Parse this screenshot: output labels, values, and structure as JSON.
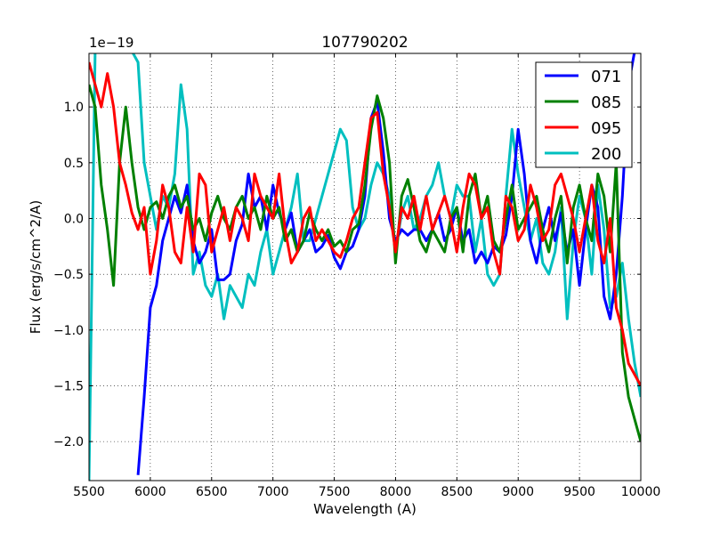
{
  "chart_data": {
    "type": "line",
    "title": "107790202",
    "xlabel": "Wavelength (A)",
    "ylabel": "Flux (erg/s/cm^2/A)",
    "offset_text": "1e−19",
    "xlim": [
      5500,
      10000
    ],
    "ylim": [
      -2.35,
      1.48
    ],
    "xticks": [
      5500,
      6000,
      6500,
      7000,
      7500,
      8000,
      8500,
      9000,
      9500,
      10000
    ],
    "xtick_labels": [
      "5500",
      "6000",
      "6500",
      "7000",
      "7500",
      "8000",
      "8500",
      "9000",
      "9500",
      "10000"
    ],
    "yticks": [
      -2.0,
      -1.5,
      -1.0,
      -0.5,
      0.0,
      0.5,
      1.0
    ],
    "ytick_labels": [
      "−2.0",
      "−1.5",
      "−1.0",
      "−0.5",
      "0.0",
      "0.5",
      "1.0"
    ],
    "grid": true,
    "legend_position": "top-right",
    "series": [
      {
        "name": "071",
        "color": "#0000ff",
        "x": [
          5900,
          5950,
          6000,
          6050,
          6100,
          6150,
          6200,
          6250,
          6300,
          6350,
          6400,
          6450,
          6500,
          6550,
          6600,
          6650,
          6700,
          6750,
          6800,
          6850,
          6900,
          6950,
          7000,
          7050,
          7100,
          7150,
          7200,
          7250,
          7300,
          7350,
          7400,
          7450,
          7500,
          7550,
          7600,
          7650,
          7700,
          7750,
          7800,
          7850,
          7900,
          7950,
          8000,
          8050,
          8100,
          8150,
          8200,
          8250,
          8300,
          8350,
          8400,
          8450,
          8500,
          8550,
          8600,
          8650,
          8700,
          8750,
          8800,
          8850,
          8900,
          8950,
          9000,
          9050,
          9100,
          9150,
          9200,
          9250,
          9300,
          9350,
          9400,
          9450,
          9500,
          9550,
          9600,
          9650,
          9700,
          9750,
          9800,
          9850,
          9900,
          9950,
          10000
        ],
        "values": [
          -2.3,
          -1.6,
          -0.8,
          -0.6,
          -0.2,
          0.0,
          0.2,
          0.05,
          0.3,
          -0.2,
          -0.4,
          -0.3,
          -0.1,
          -0.55,
          -0.55,
          -0.5,
          -0.2,
          -0.05,
          0.4,
          0.1,
          0.2,
          -0.1,
          0.3,
          0.05,
          -0.1,
          0.05,
          -0.3,
          -0.2,
          -0.1,
          -0.3,
          -0.25,
          -0.15,
          -0.35,
          -0.45,
          -0.3,
          -0.25,
          -0.1,
          0.2,
          0.9,
          1.05,
          0.6,
          0.0,
          -0.2,
          -0.1,
          -0.15,
          -0.1,
          -0.1,
          -0.2,
          -0.1,
          0.05,
          -0.2,
          -0.1,
          0.1,
          -0.2,
          -0.1,
          -0.4,
          -0.3,
          -0.4,
          -0.25,
          -0.3,
          -0.15,
          0.2,
          0.8,
          0.4,
          -0.2,
          -0.4,
          -0.1,
          0.1,
          -0.2,
          0.05,
          -0.3,
          -0.1,
          -0.6,
          -0.1,
          0.3,
          0.1,
          -0.7,
          -0.9,
          -0.5,
          0.2,
          1.2,
          1.5,
          1.5
        ]
      },
      {
        "name": "085",
        "color": "#008000",
        "x": [
          5500,
          5550,
          5600,
          5650,
          5700,
          5750,
          5800,
          5850,
          5900,
          5950,
          6000,
          6050,
          6100,
          6150,
          6200,
          6250,
          6300,
          6350,
          6400,
          6450,
          6500,
          6550,
          6600,
          6650,
          6700,
          6750,
          6800,
          6850,
          6900,
          6950,
          7000,
          7050,
          7100,
          7150,
          7200,
          7250,
          7300,
          7350,
          7400,
          7450,
          7500,
          7550,
          7600,
          7650,
          7700,
          7750,
          7800,
          7850,
          7900,
          7950,
          8000,
          8050,
          8100,
          8150,
          8200,
          8250,
          8300,
          8350,
          8400,
          8450,
          8500,
          8550,
          8600,
          8650,
          8700,
          8750,
          8800,
          8850,
          8900,
          8950,
          9000,
          9050,
          9100,
          9150,
          9200,
          9250,
          9300,
          9350,
          9400,
          9450,
          9500,
          9550,
          9600,
          9650,
          9700,
          9750,
          9800,
          9850,
          9900,
          9950,
          10000
        ],
        "values": [
          1.2,
          1.0,
          0.3,
          -0.1,
          -0.6,
          0.5,
          1.0,
          0.5,
          0.1,
          -0.1,
          0.1,
          0.15,
          0.0,
          0.2,
          0.3,
          0.1,
          0.2,
          -0.1,
          0.0,
          -0.2,
          0.05,
          0.2,
          0.0,
          -0.1,
          0.1,
          0.2,
          0.0,
          0.1,
          -0.1,
          0.2,
          0.0,
          0.1,
          -0.2,
          -0.1,
          -0.3,
          -0.2,
          0.05,
          -0.1,
          -0.2,
          -0.1,
          -0.25,
          -0.2,
          -0.3,
          -0.1,
          -0.05,
          0.3,
          0.8,
          1.1,
          0.9,
          0.5,
          -0.4,
          0.2,
          0.35,
          0.1,
          -0.2,
          -0.3,
          -0.1,
          -0.2,
          -0.3,
          0.0,
          0.1,
          -0.3,
          0.2,
          0.4,
          0.0,
          0.2,
          -0.2,
          -0.3,
          0.0,
          0.3,
          -0.1,
          0.0,
          0.1,
          0.2,
          -0.1,
          -0.3,
          0.0,
          0.2,
          -0.4,
          0.1,
          0.3,
          0.0,
          -0.2,
          0.4,
          0.2,
          -0.3,
          0.5,
          -1.2,
          -1.6,
          -1.8,
          -2.0
        ]
      },
      {
        "name": "095",
        "color": "#ff0000",
        "x": [
          5500,
          5550,
          5600,
          5650,
          5700,
          5750,
          5800,
          5850,
          5900,
          5950,
          6000,
          6050,
          6100,
          6150,
          6200,
          6250,
          6300,
          6350,
          6400,
          6450,
          6500,
          6550,
          6600,
          6650,
          6700,
          6750,
          6800,
          6850,
          6900,
          6950,
          7000,
          7050,
          7100,
          7150,
          7200,
          7250,
          7300,
          7350,
          7400,
          7450,
          7500,
          7550,
          7600,
          7650,
          7700,
          7750,
          7800,
          7850,
          7900,
          7950,
          8000,
          8050,
          8100,
          8150,
          8200,
          8250,
          8300,
          8350,
          8400,
          8450,
          8500,
          8550,
          8600,
          8650,
          8700,
          8750,
          8800,
          8850,
          8900,
          8950,
          9000,
          9050,
          9100,
          9150,
          9200,
          9250,
          9300,
          9350,
          9400,
          9450,
          9500,
          9550,
          9600,
          9650,
          9700,
          9750,
          9800,
          9850,
          9900,
          9950,
          10000
        ],
        "values": [
          1.4,
          1.2,
          1.0,
          1.3,
          1.0,
          0.5,
          0.3,
          0.05,
          -0.1,
          0.1,
          -0.5,
          -0.2,
          0.3,
          0.1,
          -0.3,
          -0.4,
          0.1,
          -0.3,
          0.4,
          0.3,
          -0.3,
          -0.1,
          0.1,
          -0.2,
          0.1,
          0.0,
          -0.2,
          0.4,
          0.2,
          0.1,
          0.0,
          0.4,
          -0.1,
          -0.4,
          -0.3,
          0.0,
          0.1,
          -0.2,
          -0.1,
          -0.2,
          -0.3,
          -0.35,
          -0.2,
          0.0,
          0.1,
          0.5,
          0.9,
          0.95,
          0.4,
          0.1,
          -0.3,
          0.1,
          0.0,
          0.2,
          -0.1,
          0.2,
          -0.1,
          0.05,
          0.2,
          0.0,
          -0.3,
          0.1,
          0.4,
          0.3,
          0.0,
          0.1,
          -0.3,
          -0.5,
          0.2,
          0.1,
          -0.2,
          -0.1,
          0.3,
          0.1,
          -0.2,
          -0.1,
          0.3,
          0.4,
          0.2,
          0.0,
          -0.3,
          0.0,
          0.3,
          -0.2,
          -0.4,
          0.0,
          -0.8,
          -1.0,
          -1.3,
          -1.4,
          -1.5
        ]
      },
      {
        "name": "200",
        "color": "#00bfbf",
        "x": [
          5500,
          5550,
          5600,
          5650,
          5700,
          5750,
          5800,
          5850,
          5900,
          5950,
          6000,
          6050,
          6100,
          6150,
          6200,
          6250,
          6300,
          6350,
          6400,
          6450,
          6500,
          6550,
          6600,
          6650,
          6700,
          6750,
          6800,
          6850,
          6900,
          6950,
          7000,
          7050,
          7100,
          7150,
          7200,
          7250,
          7300,
          7350,
          7400,
          7450,
          7500,
          7550,
          7600,
          7650,
          7700,
          7750,
          7800,
          7850,
          7900,
          7950,
          8000,
          8050,
          8100,
          8150,
          8200,
          8250,
          8300,
          8350,
          8400,
          8450,
          8500,
          8550,
          8600,
          8650,
          8700,
          8750,
          8800,
          8850,
          8900,
          8950,
          9000,
          9050,
          9100,
          9150,
          9200,
          9250,
          9300,
          9350,
          9400,
          9450,
          9500,
          9550,
          9600,
          9650,
          9700,
          9750,
          9800,
          9850,
          9900,
          9950,
          10000
        ],
        "values": [
          -2.35,
          1.5,
          1.5,
          1.5,
          1.5,
          1.5,
          1.5,
          1.5,
          1.4,
          0.5,
          0.2,
          -0.1,
          0.2,
          0.1,
          0.4,
          1.2,
          0.8,
          -0.5,
          -0.3,
          -0.6,
          -0.7,
          -0.5,
          -0.9,
          -0.6,
          -0.7,
          -0.8,
          -0.5,
          -0.6,
          -0.3,
          -0.1,
          -0.5,
          -0.3,
          -0.1,
          0.1,
          0.4,
          -0.2,
          -0.2,
          0.0,
          0.2,
          0.4,
          0.6,
          0.8,
          0.7,
          0.1,
          -0.1,
          0.0,
          0.3,
          0.5,
          0.4,
          0.2,
          -0.3,
          0.05,
          0.2,
          -0.1,
          0.0,
          0.2,
          0.3,
          0.5,
          0.2,
          0.0,
          0.3,
          0.2,
          0.2,
          -0.3,
          0.0,
          -0.5,
          -0.6,
          -0.5,
          0.2,
          0.8,
          0.4,
          0.1,
          -0.2,
          0.0,
          -0.4,
          -0.5,
          -0.3,
          0.1,
          -0.9,
          -0.2,
          0.2,
          0.0,
          -0.5,
          0.3,
          -0.1,
          -0.8,
          -0.7,
          -0.4,
          -0.9,
          -1.3,
          -1.6
        ]
      }
    ]
  }
}
